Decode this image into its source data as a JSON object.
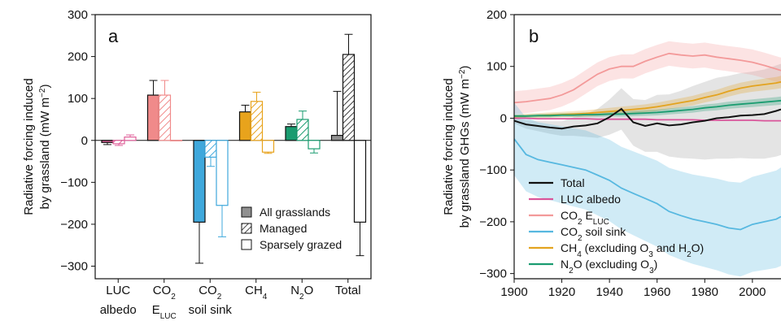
{
  "chart_data": [
    {
      "type": "bar",
      "panel_label": "a",
      "ylabel_line1": "Radiative forcing induced",
      "ylabel_line2": "by grassland (mW m",
      "ylabel_sup": "−2",
      "ylabel_end": ")",
      "ylim": [
        -330,
        300
      ],
      "yticks": [
        300,
        200,
        100,
        0,
        -100,
        -200,
        -300
      ],
      "ytick_labels": [
        "300",
        "200",
        "100",
        "0",
        "−100",
        "−200",
        "−300"
      ],
      "categories": [
        {
          "line1": "LUC",
          "line2": "albedo"
        },
        {
          "line1": "CO",
          "sub1": "2",
          "line2": "E",
          "sub2": "LUC"
        },
        {
          "line1": "CO",
          "sub1": "2",
          "line2": "soil sink"
        },
        {
          "line1": "CH",
          "sub1": "4",
          "line2": ""
        },
        {
          "line1": "N",
          "sub1": "2",
          "line1b": "O",
          "line2": ""
        },
        {
          "line1": "Total",
          "line2": ""
        }
      ],
      "category_colors": [
        "#e0609a",
        "#f08a8a",
        "#3fa8dc",
        "#e8a31c",
        "#1a9c70",
        "#909090"
      ],
      "series": [
        {
          "name": "All grasslands",
          "values": [
            -5,
            108,
            -195,
            68,
            33,
            12
          ],
          "errors": [
            5,
            35,
            98,
            16,
            6,
            105
          ]
        },
        {
          "name": "Managed",
          "values": [
            -8,
            108,
            -40,
            93,
            50,
            205
          ],
          "errors": [
            4,
            35,
            22,
            22,
            20,
            48
          ]
        },
        {
          "name": "Sparsely grazed",
          "values": [
            8,
            0,
            -155,
            -28,
            -20,
            -195
          ],
          "errors": [
            5,
            0,
            75,
            3,
            10,
            80
          ]
        }
      ],
      "legend": [
        "All grasslands",
        "Managed",
        "Sparsely grazed"
      ],
      "legend_position": "lower-right",
      "grid": false
    },
    {
      "type": "line",
      "panel_label": "b",
      "ylabel_line1": "Radiative forcing induced",
      "ylabel_line2": "by grassland GHGs (mW m",
      "ylabel_sup": "−2",
      "ylabel_end": ")",
      "xlim": [
        1900,
        2012
      ],
      "ylim": [
        -310,
        200
      ],
      "xticks": [
        1900,
        1920,
        1940,
        1960,
        1980,
        2000
      ],
      "yticks": [
        200,
        100,
        0,
        -100,
        -200,
        -300
      ],
      "ytick_labels": [
        "200",
        "100",
        "0",
        "−100",
        "−200",
        "−300"
      ],
      "legend_position": "lower-left",
      "grid": false,
      "x": [
        1900,
        1905,
        1910,
        1915,
        1920,
        1925,
        1930,
        1935,
        1940,
        1945,
        1950,
        1955,
        1960,
        1965,
        1970,
        1975,
        1980,
        1985,
        1990,
        1995,
        2000,
        2005,
        2010,
        2012
      ],
      "series": [
        {
          "name": "Total",
          "color": "#111111",
          "values": [
            -5,
            -12,
            -15,
            -18,
            -20,
            -16,
            -14,
            -10,
            2,
            18,
            -8,
            -15,
            -10,
            -14,
            -12,
            -8,
            -5,
            0,
            2,
            5,
            6,
            8,
            14,
            17
          ]
        },
        {
          "name": "LUC albedo",
          "color": "#d9559a",
          "values": [
            0,
            0,
            -1,
            -1,
            -1,
            -1,
            -1,
            -2,
            -2,
            -2,
            -2,
            -2,
            -3,
            -3,
            -3,
            -3,
            -4,
            -4,
            -4,
            -4,
            -4,
            -5,
            -5,
            -5
          ]
        },
        {
          "name": "CO2 ELUC",
          "color": "#f39a9a",
          "values": [
            30,
            32,
            35,
            38,
            45,
            55,
            70,
            85,
            95,
            100,
            100,
            110,
            118,
            125,
            122,
            120,
            122,
            118,
            115,
            112,
            108,
            102,
            95,
            92
          ],
          "band": [
            22,
            25
          ]
        },
        {
          "name": "CO2 soil sink",
          "color": "#57b8e0",
          "values": [
            -40,
            -70,
            -80,
            -85,
            -90,
            -95,
            -100,
            -110,
            -120,
            -135,
            -145,
            -155,
            -165,
            -180,
            -188,
            -195,
            -200,
            -205,
            -212,
            -215,
            -205,
            -200,
            -195,
            -190
          ],
          "band": [
            70,
            95
          ]
        },
        {
          "name": "CH4 (excluding O3 and H2O)",
          "color": "#e3a31f",
          "values": [
            3,
            4,
            5,
            6,
            7,
            8,
            9,
            11,
            13,
            15,
            17,
            19,
            22,
            26,
            30,
            34,
            40,
            45,
            52,
            58,
            62,
            65,
            68,
            70
          ],
          "band": [
            4,
            12
          ]
        },
        {
          "name": "N2O (excluding O3)",
          "color": "#1a9c70",
          "values": [
            4,
            4,
            5,
            5,
            6,
            6,
            7,
            7,
            8,
            8,
            9,
            10,
            11,
            13,
            15,
            17,
            20,
            22,
            25,
            27,
            29,
            31,
            33,
            34
          ],
          "band": [
            3,
            8
          ]
        }
      ],
      "total_band": {
        "color": "#d9d9d9",
        "width": [
          5,
          8,
          10,
          12,
          14,
          18,
          22,
          28,
          34,
          40,
          45,
          50,
          55,
          60,
          65,
          70,
          75,
          78,
          80,
          82,
          84,
          86,
          88,
          88
        ]
      },
      "legend": [
        {
          "text": "Total"
        },
        {
          "text": "LUC albedo"
        },
        {
          "text": "CO",
          "sub": "2",
          "text2": " E",
          "sub2": "LUC"
        },
        {
          "text": "CO",
          "sub": "2",
          "text2": " soil sink"
        },
        {
          "text": "CH",
          "sub": "4",
          "text2": " (excluding O",
          "sub2": "3",
          "text3": " and H",
          "sub3": "2",
          "text4": "O)"
        },
        {
          "text": "N",
          "sub": "2",
          "text2": "O (excluding O",
          "sub2": "3",
          "text3": ")"
        }
      ]
    }
  ]
}
